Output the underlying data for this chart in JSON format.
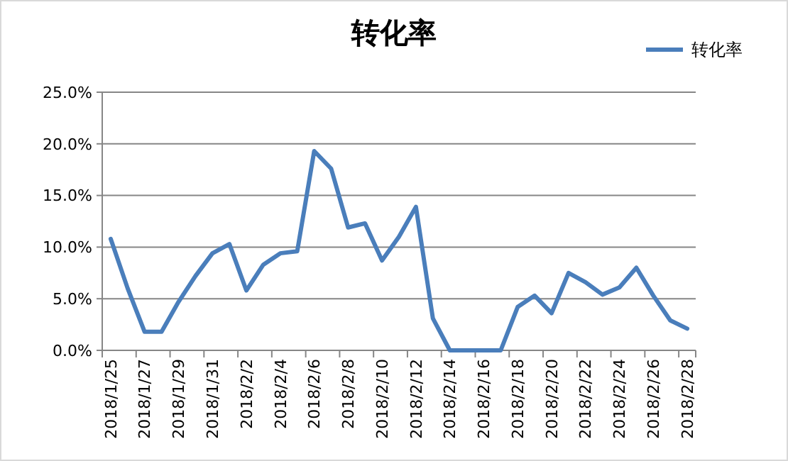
{
  "chart_data": {
    "type": "line",
    "title": "转化率",
    "categories": [
      "2018/1/25",
      null,
      "2018/1/27",
      null,
      "2018/1/29",
      null,
      "2018/1/31",
      null,
      "2018/2/2",
      null,
      "2018/2/4",
      null,
      "2018/2/6",
      null,
      "2018/2/8",
      null,
      "2018/2/10",
      null,
      "2018/2/12",
      null,
      "2018/2/14",
      null,
      "2018/2/16",
      null,
      "2018/2/18",
      null,
      "2018/2/20",
      null,
      "2018/2/22",
      null,
      "2018/2/24",
      null,
      "2018/2/26",
      null,
      "2018/2/28"
    ],
    "series": [
      {
        "name": "转化率",
        "color": "#4a7ebb",
        "values": [
          10.8,
          6.0,
          1.8,
          1.8,
          4.7,
          7.2,
          9.4,
          10.3,
          5.8,
          8.3,
          9.4,
          9.6,
          19.3,
          17.6,
          11.9,
          12.3,
          8.7,
          11.0,
          13.9,
          3.1,
          0,
          0,
          0,
          0,
          4.2,
          5.3,
          3.6,
          7.5,
          6.6,
          5.4,
          6.1,
          8.0,
          5.3,
          2.9,
          2.1
        ]
      }
    ],
    "ylim": [
      0,
      25
    ],
    "yticks": [
      {
        "value": 0,
        "label": "0.0%"
      },
      {
        "value": 5,
        "label": "5.0%"
      },
      {
        "value": 10,
        "label": "10.0%"
      },
      {
        "value": 15,
        "label": "15.0%"
      },
      {
        "value": 20,
        "label": "20.0%"
      },
      {
        "value": 25,
        "label": "25.0%"
      }
    ],
    "grid": "y",
    "legend": "top right",
    "marker": "none",
    "line_style": "solid"
  }
}
